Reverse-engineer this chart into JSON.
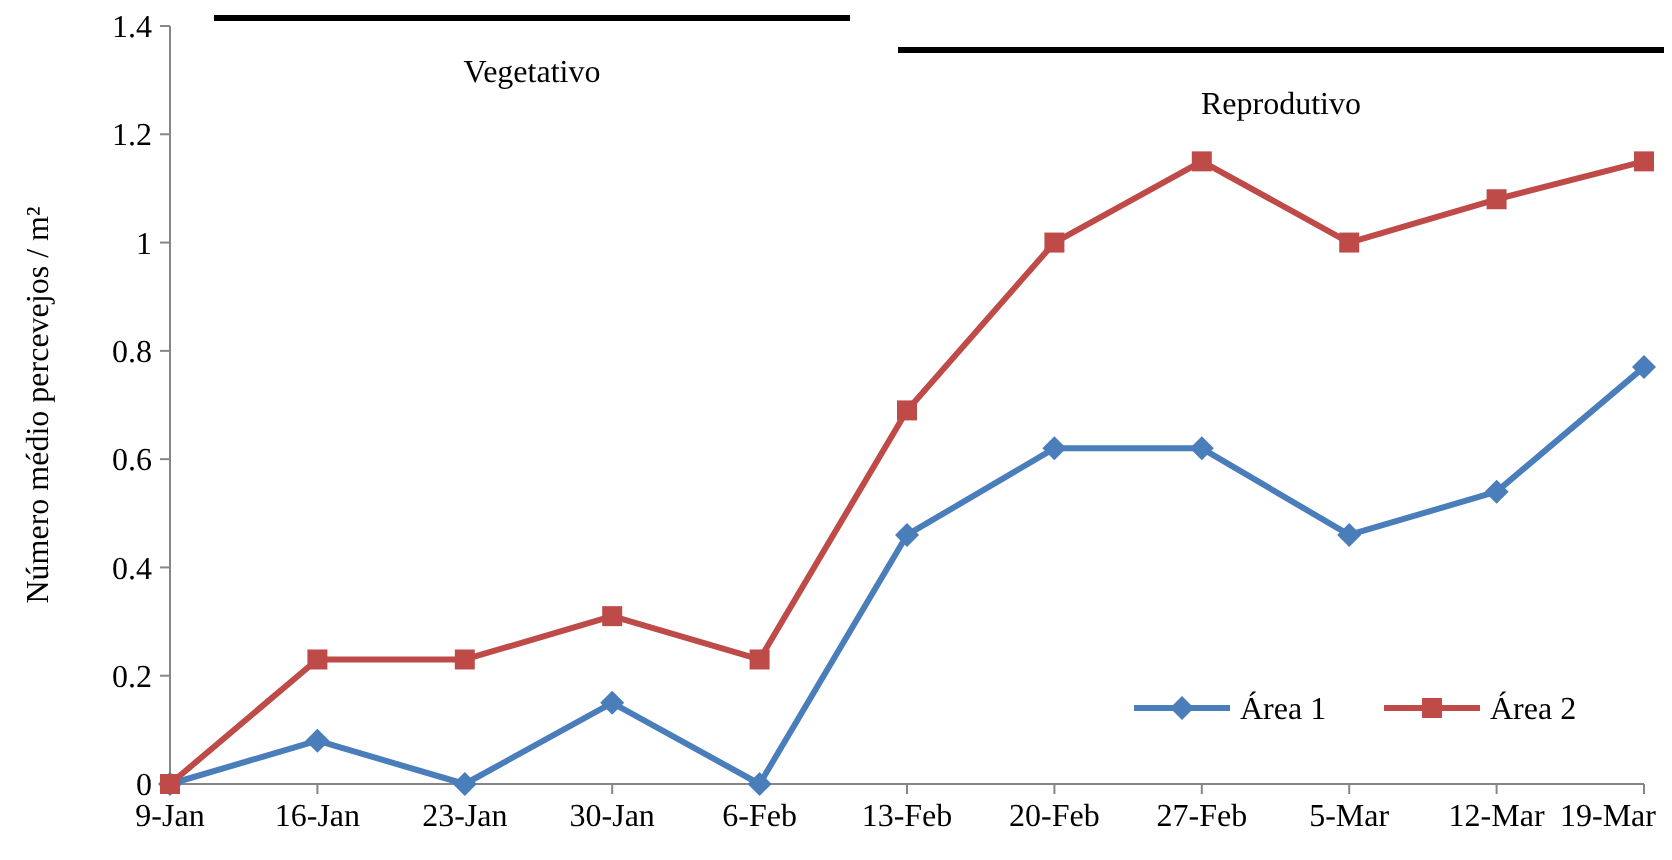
{
  "chart_data": {
    "type": "line",
    "ylabel": "Número médio percevejos / m²",
    "categories": [
      "9-Jan",
      "16-Jan",
      "23-Jan",
      "30-Jan",
      "6-Feb",
      "13-Feb",
      "20-Feb",
      "27-Feb",
      "5-Mar",
      "12-Mar",
      "19-Mar"
    ],
    "series": [
      {
        "name": "Área 1",
        "color": "#4a7ebb",
        "marker": "diamond",
        "values": [
          0,
          0.08,
          0,
          0.15,
          0,
          0.46,
          0.62,
          0.62,
          0.46,
          0.54,
          0.77
        ]
      },
      {
        "name": "Área 2",
        "color": "#be4b48",
        "marker": "square",
        "values": [
          0,
          0.23,
          0.23,
          0.31,
          0.23,
          0.69,
          1.0,
          1.15,
          1.0,
          1.08,
          1.15
        ]
      }
    ],
    "ylim": [
      0,
      1.4
    ],
    "yticks": [
      0,
      0.2,
      0.4,
      0.6,
      0.8,
      1,
      1.2,
      1.4
    ],
    "grid": false,
    "legend": "bottom right",
    "annotations": [
      "Vegetativo",
      "Reprodutivo"
    ]
  }
}
